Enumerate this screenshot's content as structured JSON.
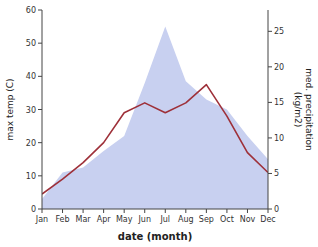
{
  "chart_data": {
    "type": "line",
    "categories": [
      "Jan",
      "Feb",
      "Mar",
      "Apr",
      "May",
      "Jun",
      "Jul",
      "Aug",
      "Sep",
      "Oct",
      "Nov",
      "Dec"
    ],
    "series": [
      {
        "type": "area",
        "color": "#c8d0f0",
        "values": [
          3.0,
          11.0,
          12.5,
          17.5,
          22.0,
          38.0,
          55.0,
          38.5,
          33.0,
          30.0,
          22.0,
          15.0
        ]
      },
      {
        "type": "line",
        "color": "#9e3039",
        "values": [
          4.5,
          9.0,
          14.0,
          20.0,
          29.0,
          32.0,
          29.0,
          32.0,
          37.5,
          28.0,
          17.0,
          11.0
        ]
      }
    ],
    "ylim": [
      0,
      60
    ],
    "yticks": [
      0,
      10,
      20,
      30,
      40,
      50,
      60
    ],
    "y2lim": [
      0,
      28
    ],
    "y2ticks": [
      0,
      5,
      10,
      15,
      20,
      25
    ],
    "xlabel": "date (month)",
    "ylabel": "max temp (C)",
    "y2label": "med. precipitation\n(kg/m2)",
    "grid": false
  }
}
